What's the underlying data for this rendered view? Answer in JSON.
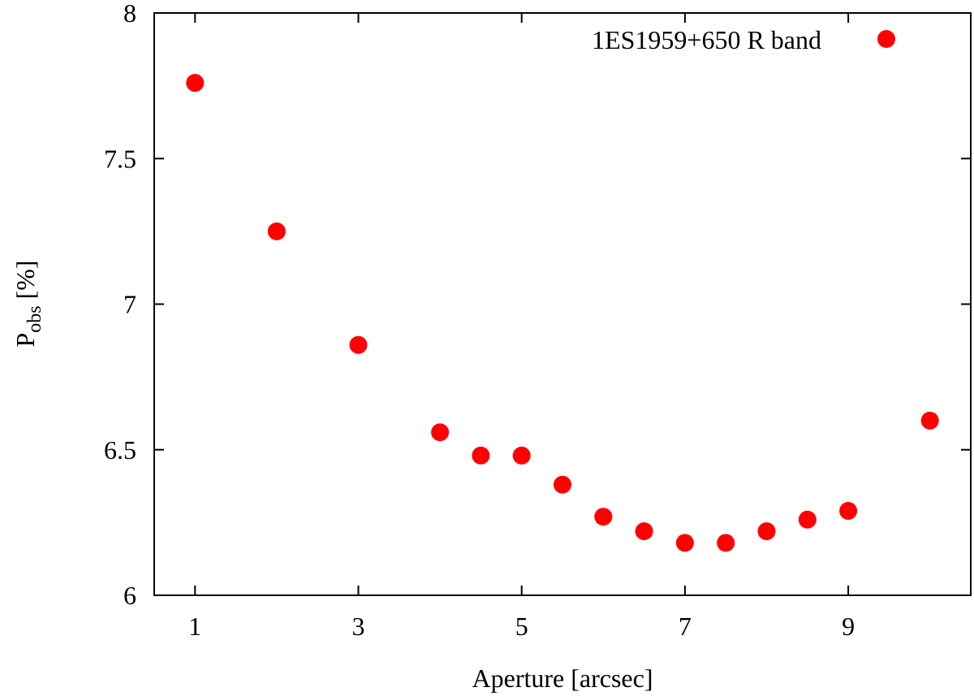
{
  "chart_data": {
    "type": "scatter",
    "title": "",
    "xlabel": "Aperture [arcsec]",
    "ylabel": {
      "base": "P",
      "subscript": "obs",
      "suffix": " [%]"
    },
    "xlim": [
      0.5,
      10.5
    ],
    "ylim": [
      6,
      8
    ],
    "xticks": [
      1,
      3,
      5,
      7,
      9
    ],
    "yticks": [
      6,
      6.5,
      7,
      7.5,
      8
    ],
    "ytick_labels": [
      "6",
      "6.5",
      "7",
      "7.5",
      "8"
    ],
    "grid": false,
    "legend_position": "top-right",
    "series": [
      {
        "name": "1ES1959+650 R band",
        "color": "#ff0000",
        "marker": "circle",
        "x": [
          1,
          2,
          3,
          4,
          4.5,
          5,
          5.5,
          6,
          6.5,
          7,
          7.5,
          8,
          8.5,
          9,
          10
        ],
        "y": [
          7.76,
          7.25,
          6.86,
          6.56,
          6.48,
          6.48,
          6.38,
          6.27,
          6.22,
          6.18,
          6.18,
          6.22,
          6.26,
          6.29,
          6.6
        ]
      }
    ]
  }
}
